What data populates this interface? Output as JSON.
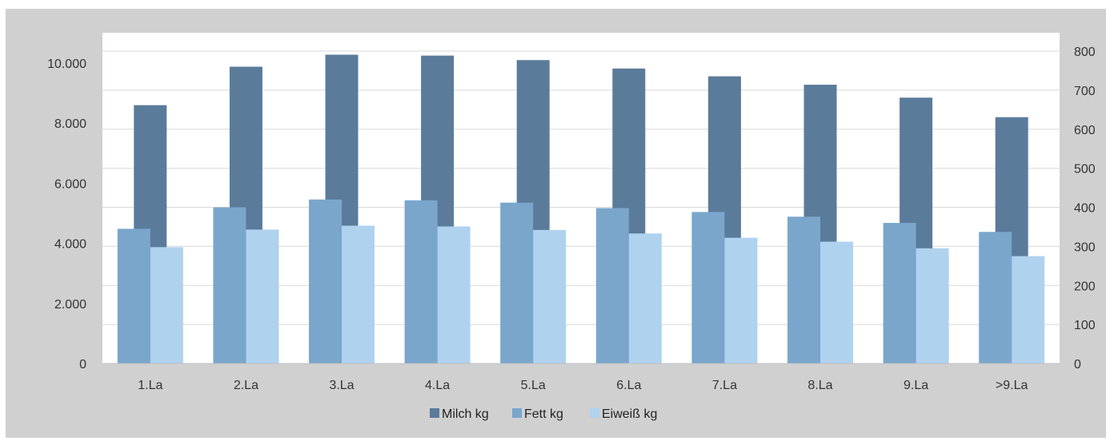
{
  "chart_data": {
    "type": "bar",
    "categories": [
      "1.La",
      "2.La",
      "3.La",
      "4.La",
      "5.La",
      "6.La",
      "7.La",
      "8.La",
      "9.La",
      ">9.La"
    ],
    "series": [
      {
        "name": "Milch kg",
        "axis": "left",
        "color": "#5b7b9b",
        "values": [
          8600,
          9880,
          10280,
          10250,
          10100,
          9820,
          9560,
          9280,
          8850,
          8200
        ]
      },
      {
        "name": "Fett kg",
        "axis": "right",
        "color": "#7aa6cc",
        "values": [
          345,
          400,
          420,
          418,
          412,
          398,
          388,
          376,
          360,
          337
        ]
      },
      {
        "name": "Eiweiß kg",
        "axis": "right",
        "color": "#afd2ef",
        "values": [
          298,
          343,
          353,
          351,
          342,
          333,
          322,
          312,
          295,
          275
        ]
      }
    ],
    "y_left": {
      "lim": [
        0,
        10000
      ],
      "ticks": [
        0,
        2000,
        4000,
        6000,
        8000,
        10000
      ],
      "tick_labels": [
        "0",
        "2.000",
        "4.000",
        "6.000",
        "8.000",
        "10.000"
      ]
    },
    "y_right": {
      "lim": [
        0,
        800
      ],
      "ticks": [
        0,
        100,
        200,
        300,
        400,
        500,
        600,
        700,
        800
      ],
      "tick_labels": [
        "0",
        "100",
        "200",
        "300",
        "400",
        "500",
        "600",
        "700",
        "800"
      ]
    },
    "grid": true,
    "legend_position": "bottom",
    "colors": {
      "background": "#d0d0d0",
      "plot_background": "#ffffff",
      "grid": "#d9d9d9"
    }
  }
}
